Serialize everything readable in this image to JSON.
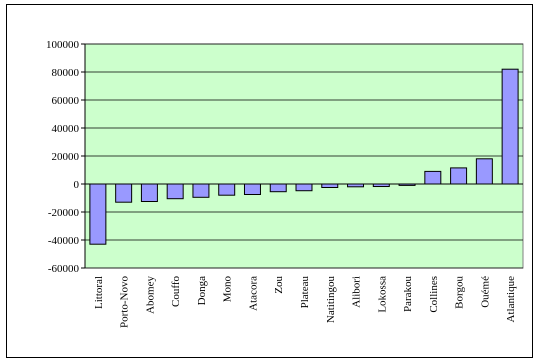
{
  "chart_data": {
    "type": "bar",
    "title": "",
    "xlabel": "",
    "ylabel": "",
    "ylim": [
      -60000,
      100000
    ],
    "yticks": [
      100000,
      80000,
      60000,
      40000,
      20000,
      0,
      -20000,
      -40000,
      -60000
    ],
    "ytick_labels": [
      "100000",
      "80000",
      "60000",
      "40000",
      "20000",
      "0",
      "-20000",
      "-40000",
      "-60000"
    ],
    "grid": "horizontal",
    "legend": "none",
    "categories": [
      "Littoral",
      "Porto-Novo",
      "Abomey",
      "Couffo",
      "Donga",
      "Mono",
      "Atacora",
      "Zou",
      "Plateau",
      "Natitingou",
      "Alibori",
      "Lokossa",
      "Parakou",
      "Collines",
      "Borgou",
      "Ouémé",
      "Atlantique"
    ],
    "values": [
      -43000,
      -13000,
      -12500,
      -10500,
      -9500,
      -8000,
      -7500,
      -5500,
      -4800,
      -2500,
      -2000,
      -1800,
      -1000,
      9000,
      11500,
      18000,
      82000
    ],
    "colors": {
      "plot_bg": "#ccffcc",
      "bar_fill": "#9999ff",
      "bar_stroke": "#000000",
      "grid": "#000000"
    }
  }
}
